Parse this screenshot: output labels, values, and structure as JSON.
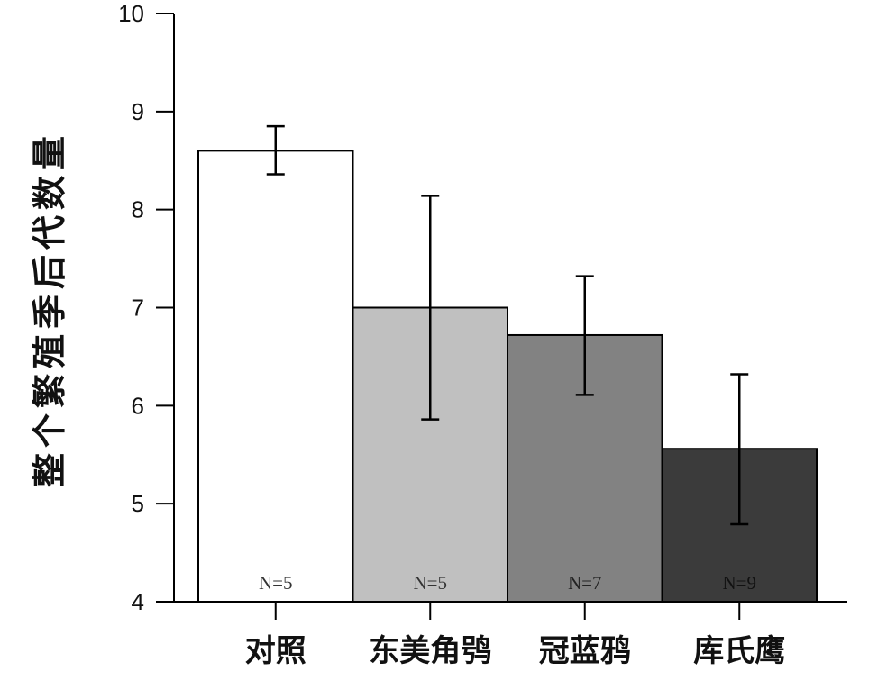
{
  "chart_data": {
    "type": "bar",
    "ylabel": "整个繁殖季后代数量",
    "ylim": [
      4,
      10
    ],
    "yticks": [
      4,
      5,
      6,
      7,
      8,
      9,
      10
    ],
    "categories": [
      "对照",
      "东美角鸮",
      "冠蓝鸦",
      "库氏鹰"
    ],
    "values": [
      8.6,
      7.0,
      6.72,
      5.56
    ],
    "error_low": [
      8.36,
      5.86,
      6.11,
      4.79
    ],
    "error_high": [
      8.85,
      8.14,
      7.32,
      6.32
    ],
    "sample_labels": [
      "N=5",
      "N=5",
      "N=7",
      "N=9"
    ],
    "colors": {
      "bars": [
        "#ffffff",
        "#c0c0c0",
        "#828282",
        "#3b3b3b"
      ],
      "sample_text": [
        "#333333",
        "#333333",
        "#222222",
        "#111111"
      ]
    },
    "grid": false,
    "legend": "none"
  }
}
